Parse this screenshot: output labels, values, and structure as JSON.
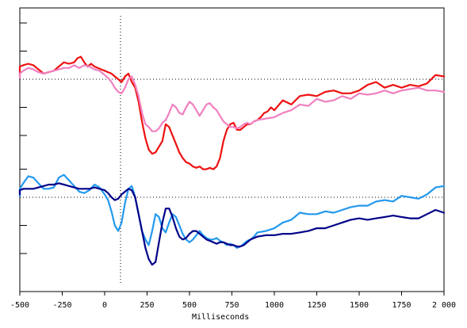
{
  "chart_data": {
    "type": "line",
    "title": "",
    "xlabel": "Milliseconds",
    "ylabel": "",
    "xlim": [
      -500,
      2000
    ],
    "xticks": [
      -500,
      -250,
      0,
      250,
      500,
      750,
      1000,
      1250,
      1500,
      1750,
      2000
    ],
    "xtick_labels": [
      "-500",
      "-250",
      "0",
      "250",
      "500",
      "750",
      "1000",
      "1250",
      "1500",
      "1750",
      "2 000"
    ],
    "grid": false,
    "legend": "none",
    "panels": [
      {
        "baseline": 0,
        "ylim": [
          -3.3,
          2.8
        ],
        "ticks": [
          2,
          1,
          -1,
          -2
        ],
        "series": [
          {
            "color": "#ee1111",
            "x": [
              -600,
              -570,
              -540,
              -510,
              -480,
              -450,
              -420,
              -390,
              -360,
              -330,
              -300,
              -270,
              -240,
              -210,
              -180,
              -160,
              -140,
              -120,
              -100,
              -80,
              -60,
              -40,
              -20,
              0,
              20,
              40,
              60,
              80,
              100,
              120,
              140,
              160,
              180,
              200,
              220,
              240,
              260,
              280,
              300,
              320,
              340,
              360,
              380,
              400,
              420,
              440,
              460,
              480,
              500,
              520,
              540,
              560,
              580,
              600,
              620,
              640,
              660,
              680,
              700,
              720,
              740,
              760,
              780,
              800,
              820,
              840,
              860,
              880,
              900,
              920,
              940,
              960,
              980,
              1000,
              1050,
              1100,
              1150,
              1200,
              1250,
              1300,
              1350,
              1400,
              1450,
              1500,
              1550,
              1600,
              1650,
              1700,
              1750,
              1800,
              1850,
              1900,
              1950,
              2000
            ],
            "y": [
              0.1,
              0.15,
              0.4,
              0.45,
              0.5,
              0.55,
              0.5,
              0.35,
              0.2,
              0.25,
              0.3,
              0.45,
              0.6,
              0.55,
              0.6,
              0.75,
              0.8,
              0.6,
              0.45,
              0.55,
              0.45,
              0.4,
              0.35,
              0.3,
              0.25,
              0.2,
              0.1,
              0.0,
              -0.1,
              0.1,
              0.2,
              -0.1,
              -0.3,
              -0.8,
              -1.5,
              -2.1,
              -2.5,
              -2.65,
              -2.6,
              -2.4,
              -2.2,
              -1.6,
              -1.7,
              -2.0,
              -2.3,
              -2.6,
              -2.8,
              -2.95,
              -3.0,
              -3.1,
              -3.15,
              -3.1,
              -3.2,
              -3.2,
              -3.15,
              -3.2,
              -3.1,
              -2.8,
              -2.2,
              -1.8,
              -1.6,
              -1.55,
              -1.8,
              -1.8,
              -1.7,
              -1.6,
              -1.6,
              -1.5,
              -1.45,
              -1.35,
              -1.2,
              -1.15,
              -1.0,
              -1.1,
              -0.75,
              -0.9,
              -0.6,
              -0.55,
              -0.6,
              -0.45,
              -0.4,
              -0.5,
              -0.5,
              -0.4,
              -0.2,
              -0.1,
              -0.3,
              -0.2,
              -0.3,
              -0.2,
              -0.25,
              -0.15,
              0.15,
              0.1
            ]
          },
          {
            "color": "#f080c0",
            "x": [
              -600,
              -570,
              -540,
              -510,
              -480,
              -450,
              -420,
              -390,
              -360,
              -330,
              -300,
              -270,
              -240,
              -210,
              -180,
              -150,
              -120,
              -90,
              -60,
              -30,
              0,
              20,
              40,
              60,
              80,
              100,
              120,
              140,
              160,
              180,
              200,
              220,
              240,
              260,
              280,
              300,
              320,
              340,
              360,
              380,
              400,
              420,
              440,
              460,
              480,
              500,
              520,
              540,
              560,
              580,
              600,
              620,
              640,
              660,
              680,
              700,
              720,
              740,
              760,
              780,
              800,
              820,
              840,
              860,
              880,
              900,
              950,
              1000,
              1050,
              1100,
              1150,
              1200,
              1250,
              1300,
              1350,
              1400,
              1450,
              1500,
              1550,
              1600,
              1650,
              1700,
              1750,
              1800,
              1850,
              1900,
              1950,
              2000
            ],
            "y": [
              0.05,
              0.1,
              0.15,
              0.2,
              0.3,
              0.4,
              0.35,
              0.25,
              0.2,
              0.25,
              0.3,
              0.35,
              0.4,
              0.4,
              0.5,
              0.4,
              0.5,
              0.45,
              0.35,
              0.3,
              0.15,
              0.05,
              -0.1,
              -0.3,
              -0.45,
              -0.5,
              -0.3,
              0.0,
              0.1,
              -0.2,
              -0.6,
              -1.2,
              -1.6,
              -1.7,
              -1.85,
              -1.85,
              -1.75,
              -1.55,
              -1.45,
              -1.2,
              -0.9,
              -1.0,
              -1.2,
              -1.25,
              -1.0,
              -0.8,
              -0.9,
              -1.1,
              -1.3,
              -1.1,
              -0.9,
              -0.85,
              -1.0,
              -1.1,
              -1.3,
              -1.5,
              -1.6,
              -1.7,
              -1.7,
              -1.75,
              -1.7,
              -1.6,
              -1.55,
              -1.6,
              -1.5,
              -1.45,
              -1.4,
              -1.35,
              -1.2,
              -1.1,
              -0.9,
              -0.95,
              -0.7,
              -0.8,
              -0.75,
              -0.6,
              -0.7,
              -0.5,
              -0.55,
              -0.5,
              -0.4,
              -0.5,
              -0.4,
              -0.35,
              -0.3,
              -0.4,
              -0.4,
              -0.45
            ]
          }
        ]
      },
      {
        "baseline": 0,
        "ylim": [
          -3.3,
          2.8
        ],
        "ticks": [
          1,
          -1,
          -2
        ],
        "series": [
          {
            "color": "#2299ee",
            "x": [
              -600,
              -570,
              -540,
              -510,
              -480,
              -450,
              -420,
              -390,
              -360,
              -330,
              -300,
              -270,
              -240,
              -210,
              -180,
              -150,
              -120,
              -90,
              -60,
              -30,
              0,
              20,
              40,
              60,
              80,
              100,
              120,
              140,
              160,
              180,
              200,
              220,
              240,
              260,
              280,
              300,
              320,
              340,
              360,
              380,
              400,
              420,
              440,
              460,
              480,
              500,
              520,
              540,
              560,
              580,
              600,
              620,
              640,
              660,
              680,
              700,
              720,
              740,
              760,
              780,
              800,
              820,
              840,
              860,
              880,
              900,
              950,
              1000,
              1050,
              1100,
              1150,
              1200,
              1250,
              1300,
              1350,
              1400,
              1450,
              1500,
              1550,
              1600,
              1650,
              1700,
              1750,
              1800,
              1850,
              1900,
              1950,
              2000
            ],
            "y": [
              0.05,
              0.1,
              0.2,
              0.3,
              0.5,
              0.75,
              0.7,
              0.5,
              0.3,
              0.3,
              0.35,
              0.7,
              0.8,
              0.6,
              0.4,
              0.2,
              0.15,
              0.25,
              0.45,
              0.35,
              0.1,
              -0.1,
              -0.5,
              -1.0,
              -1.2,
              -0.9,
              -0.2,
              0.3,
              0.4,
              0.0,
              -0.6,
              -1.2,
              -1.5,
              -1.7,
              -1.2,
              -0.6,
              -0.7,
              -1.1,
              -1.25,
              -0.9,
              -0.6,
              -0.7,
              -1.0,
              -1.3,
              -1.5,
              -1.6,
              -1.5,
              -1.35,
              -1.2,
              -1.35,
              -1.45,
              -1.5,
              -1.5,
              -1.45,
              -1.55,
              -1.6,
              -1.7,
              -1.65,
              -1.7,
              -1.8,
              -1.75,
              -1.65,
              -1.55,
              -1.5,
              -1.4,
              -1.25,
              -1.2,
              -1.1,
              -0.9,
              -0.8,
              -0.55,
              -0.6,
              -0.6,
              -0.5,
              -0.55,
              -0.45,
              -0.35,
              -0.3,
              -0.3,
              -0.15,
              -0.1,
              -0.15,
              0.05,
              0.0,
              -0.05,
              0.1,
              0.35,
              0.4
            ]
          },
          {
            "color": "#000088",
            "x": [
              -600,
              -570,
              -540,
              -510,
              -480,
              -450,
              -420,
              -390,
              -360,
              -330,
              -300,
              -270,
              -240,
              -210,
              -180,
              -150,
              -120,
              -90,
              -60,
              -30,
              0,
              20,
              40,
              60,
              80,
              100,
              120,
              140,
              160,
              180,
              200,
              220,
              240,
              260,
              280,
              300,
              320,
              340,
              360,
              380,
              400,
              420,
              440,
              460,
              480,
              500,
              520,
              540,
              560,
              580,
              600,
              620,
              640,
              660,
              680,
              700,
              720,
              740,
              760,
              780,
              800,
              820,
              840,
              860,
              880,
              900,
              950,
              1000,
              1050,
              1100,
              1150,
              1200,
              1250,
              1300,
              1350,
              1400,
              1450,
              1500,
              1550,
              1600,
              1650,
              1700,
              1750,
              1800,
              1850,
              1900,
              1950,
              2000
            ],
            "y": [
              0.1,
              0.15,
              0.2,
              0.25,
              0.3,
              0.3,
              0.3,
              0.35,
              0.4,
              0.45,
              0.45,
              0.5,
              0.45,
              0.4,
              0.35,
              0.3,
              0.3,
              0.3,
              0.35,
              0.3,
              0.25,
              0.15,
              0.0,
              -0.1,
              -0.05,
              0.1,
              0.2,
              0.3,
              0.25,
              0.0,
              -0.6,
              -1.2,
              -1.8,
              -2.2,
              -2.4,
              -2.3,
              -1.6,
              -0.9,
              -0.4,
              -0.4,
              -0.7,
              -1.1,
              -1.4,
              -1.5,
              -1.45,
              -1.3,
              -1.2,
              -1.2,
              -1.3,
              -1.4,
              -1.5,
              -1.55,
              -1.6,
              -1.65,
              -1.6,
              -1.6,
              -1.65,
              -1.7,
              -1.7,
              -1.75,
              -1.75,
              -1.7,
              -1.6,
              -1.5,
              -1.45,
              -1.4,
              -1.35,
              -1.35,
              -1.3,
              -1.3,
              -1.25,
              -1.2,
              -1.1,
              -1.1,
              -1.0,
              -0.9,
              -0.8,
              -0.75,
              -0.8,
              -0.75,
              -0.7,
              -0.65,
              -0.7,
              -0.75,
              -0.75,
              -0.6,
              -0.45,
              -0.55
            ]
          }
        ]
      }
    ]
  }
}
